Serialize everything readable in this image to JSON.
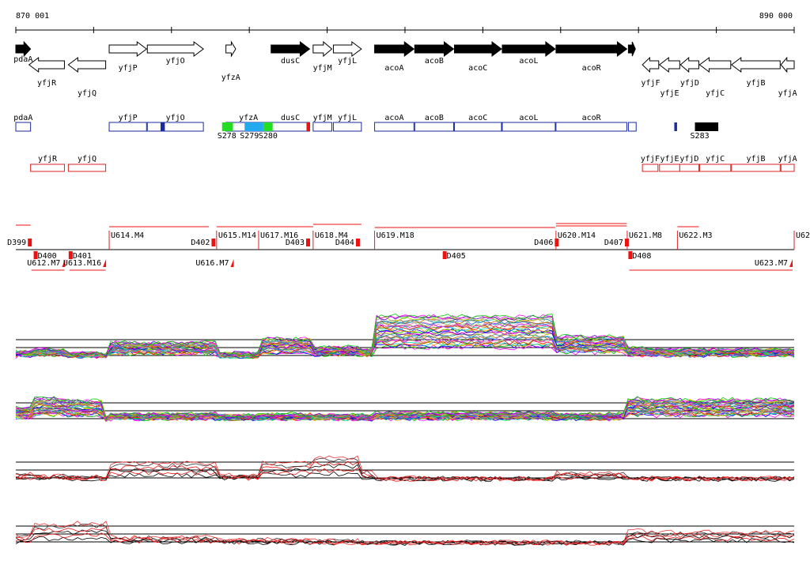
{
  "axis": {
    "start": 870001,
    "end": 890000,
    "start_label": "870 001",
    "end_label": "890 000"
  },
  "genes_plus": [
    {
      "name": "pdaA",
      "start": 870001,
      "end": 870380,
      "filled": true
    },
    {
      "name": "yfjP",
      "start": 872400,
      "end": 873360,
      "filled": false
    },
    {
      "name": "yfjO",
      "start": 873380,
      "end": 874820,
      "filled": false
    },
    {
      "name": "yfzA",
      "start": 875400,
      "end": 875650,
      "filled": false
    },
    {
      "name": "dusC",
      "start": 876560,
      "end": 877550,
      "filled": true
    },
    {
      "name": "yfjM",
      "start": 877640,
      "end": 878120,
      "filled": false
    },
    {
      "name": "yfjL",
      "start": 878160,
      "end": 878880,
      "filled": false
    },
    {
      "name": "acoA",
      "start": 879220,
      "end": 880230,
      "filled": true
    },
    {
      "name": "acoB",
      "start": 880250,
      "end": 881250,
      "filled": true
    },
    {
      "name": "acoC",
      "start": 881270,
      "end": 882480,
      "filled": true
    },
    {
      "name": "acoL",
      "start": 882500,
      "end": 883860,
      "filled": true
    },
    {
      "name": "acoR",
      "start": 883880,
      "end": 885700,
      "filled": true
    },
    {
      "name": "",
      "start": 885740,
      "end": 885920,
      "filled": true
    }
  ],
  "genes_minus": [
    {
      "name": "yfjR",
      "start": 870340,
      "end": 871250
    },
    {
      "name": "yfjQ",
      "start": 871350,
      "end": 872310
    },
    {
      "name": "yfjF",
      "start": 886100,
      "end": 886520
    },
    {
      "name": "yfjE",
      "start": 886540,
      "end": 887060
    },
    {
      "name": "yfjD",
      "start": 887080,
      "end": 887550
    },
    {
      "name": "yfjC",
      "start": 887570,
      "end": 888370
    },
    {
      "name": "yfjB",
      "start": 888390,
      "end": 889640
    },
    {
      "name": "yfjA",
      "start": 889660,
      "end": 890000
    }
  ],
  "transcripts_plus": [
    {
      "label": "pdaA",
      "start": 870001,
      "end": 870380
    },
    {
      "label": "yfjP",
      "start": 872400,
      "end": 873360
    },
    {
      "label": "yfjO",
      "start": 873380,
      "end": 874820
    },
    {
      "label": "yfzA",
      "start": 875400,
      "end": 876560
    },
    {
      "label": "dusC",
      "start": 876560,
      "end": 877550
    },
    {
      "label": "yfjM",
      "start": 877640,
      "end": 878120
    },
    {
      "label": "yfjL",
      "start": 878160,
      "end": 878880
    },
    {
      "label": "acoA",
      "start": 879220,
      "end": 880230
    },
    {
      "label": "acoB",
      "start": 880250,
      "end": 881250
    },
    {
      "label": "acoC",
      "start": 881270,
      "end": 882480
    },
    {
      "label": "acoL",
      "start": 882500,
      "end": 883860
    },
    {
      "label": "acoR",
      "start": 883880,
      "end": 885700
    },
    {
      "label": "",
      "start": 885740,
      "end": 885940
    }
  ],
  "segment_marks": [
    {
      "label": "S278",
      "start": 875300,
      "end": 875580,
      "color": "#22dd22"
    },
    {
      "label": "S279",
      "start": 875880,
      "end": 876360,
      "color": "#22aaee"
    },
    {
      "label": "S280",
      "start": 876360,
      "end": 876600,
      "color": "#22dd22"
    },
    {
      "label": "",
      "start": 877470,
      "end": 877560,
      "color": "#ee1111"
    },
    {
      "label": "",
      "start": 873720,
      "end": 873830,
      "color": "#1a2aa0"
    },
    {
      "label": "S283",
      "start": 887450,
      "end": 888050,
      "color": "#000000"
    },
    {
      "label": "",
      "start": 886920,
      "end": 886990,
      "color": "#1a2aa0"
    }
  ],
  "transcripts_minus": [
    {
      "label": "yfjR",
      "start": 870380,
      "end": 871250
    },
    {
      "label": "yfjQ",
      "start": 871350,
      "end": 872310
    },
    {
      "label": "yfjF",
      "start": 886100,
      "end": 886500
    },
    {
      "label": "yfjE",
      "start": 886540,
      "end": 887060
    },
    {
      "label": "yfjD",
      "start": 887060,
      "end": 887550
    },
    {
      "label": "yfjC",
      "start": 887570,
      "end": 888370
    },
    {
      "label": "yfjB",
      "start": 888390,
      "end": 889640
    },
    {
      "label": "yfjA",
      "start": 889660,
      "end": 890000
    }
  ],
  "up_shifts": [
    {
      "label": "U614.M4",
      "pos": 872400
    },
    {
      "label": "U615.M14",
      "pos": 875160
    },
    {
      "label": "U617.M16",
      "pos": 876240
    },
    {
      "label": "U618.M4",
      "pos": 877640
    },
    {
      "label": "U619.M18",
      "pos": 879220
    },
    {
      "label": "U620.M14",
      "pos": 883880
    },
    {
      "label": "U621.M8",
      "pos": 885710
    },
    {
      "label": "U622.M3",
      "pos": 887000
    },
    {
      "label": "U62",
      "pos": 890000
    }
  ],
  "down_shifts": [
    {
      "label": "D399",
      "pos": 870330
    },
    {
      "label": "D402",
      "pos": 875050
    },
    {
      "label": "D403",
      "pos": 877480
    },
    {
      "label": "D404",
      "pos": 878760
    },
    {
      "label": "D406",
      "pos": 883870
    },
    {
      "label": "D407",
      "pos": 885670
    }
  ],
  "lower_shifts_down": [
    {
      "label": "D400",
      "pos": 870480
    },
    {
      "label": "D401",
      "pos": 871380
    },
    {
      "label": "D405",
      "pos": 880990
    },
    {
      "label": "D408",
      "pos": 885760
    }
  ],
  "lower_shifts_up": [
    {
      "label": "U612.M7",
      "pos": 871270
    },
    {
      "label": "U613.M16",
      "pos": 872320
    },
    {
      "label": "U616.M7",
      "pos": 875600
    },
    {
      "label": "U623.M7",
      "pos": 889960
    }
  ]
}
